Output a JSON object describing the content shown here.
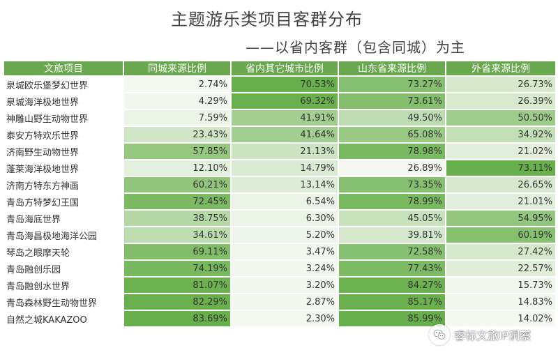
{
  "header": {
    "title": "主题游乐类项目客群分布",
    "subtitle": "——以省内客群（包含同城）为主"
  },
  "table": {
    "columns": [
      "文旅项目",
      "同城来源比例",
      "省内其它城市比例",
      "山东省来源比例",
      "外省来源比例"
    ],
    "rows": [
      {
        "name": "泉城欧乐堡梦幻世界",
        "values": [
          "2.74%",
          "70.53%",
          "73.27%",
          "26.73%"
        ]
      },
      {
        "name": "泉城海洋极地世界",
        "values": [
          "4.29%",
          "69.32%",
          "73.61%",
          "26.39%"
        ]
      },
      {
        "name": "神雕山野生动物世界",
        "values": [
          "7.59%",
          "41.91%",
          "49.50%",
          "50.50%"
        ]
      },
      {
        "name": "泰安方特欢乐世界",
        "values": [
          "23.43%",
          "41.64%",
          "65.08%",
          "34.92%"
        ]
      },
      {
        "name": "济南野生动物世界",
        "values": [
          "57.85%",
          "21.13%",
          "78.98%",
          "21.02%"
        ]
      },
      {
        "name": "蓬莱海洋极地世界",
        "values": [
          "12.10%",
          "14.79%",
          "26.89%",
          "73.11%"
        ]
      },
      {
        "name": "济南方特东方神画",
        "values": [
          "60.21%",
          "13.14%",
          "73.35%",
          "26.65%"
        ]
      },
      {
        "name": "青岛方特梦幻王国",
        "values": [
          "72.45%",
          "6.54%",
          "78.99%",
          "21.01%"
        ]
      },
      {
        "name": "青岛海底世界",
        "values": [
          "38.75%",
          "6.30%",
          "45.05%",
          "54.95%"
        ]
      },
      {
        "name": "青岛海昌极地海洋公园",
        "values": [
          "34.61%",
          "5.20%",
          "39.81%",
          "60.19%"
        ]
      },
      {
        "name": "琴岛之眼摩天轮",
        "values": [
          "69.11%",
          "3.47%",
          "72.58%",
          "27.42%"
        ]
      },
      {
        "name": "青岛融创乐园",
        "values": [
          "74.19%",
          "3.24%",
          "77.43%",
          "22.57%"
        ]
      },
      {
        "name": "青岛融创水世界",
        "values": [
          "81.07%",
          "3.20%",
          "84.27%",
          "15.73%"
        ]
      },
      {
        "name": "青岛森林野生动物世界",
        "values": [
          "82.29%",
          "2.87%",
          "85.17%",
          "14.83%"
        ]
      },
      {
        "name": "自然之城KAKAZOO",
        "values": [
          "83.69%",
          "2.30%",
          "85.99%",
          "14.02%"
        ]
      }
    ]
  },
  "watermark": {
    "text": "睿标文旅IP洞察",
    "icon": "wechat-icon"
  },
  "colors": {
    "header_green": "#6aa84f",
    "scale_low": "#f4f8f1",
    "scale_high": "#68b04b"
  }
}
